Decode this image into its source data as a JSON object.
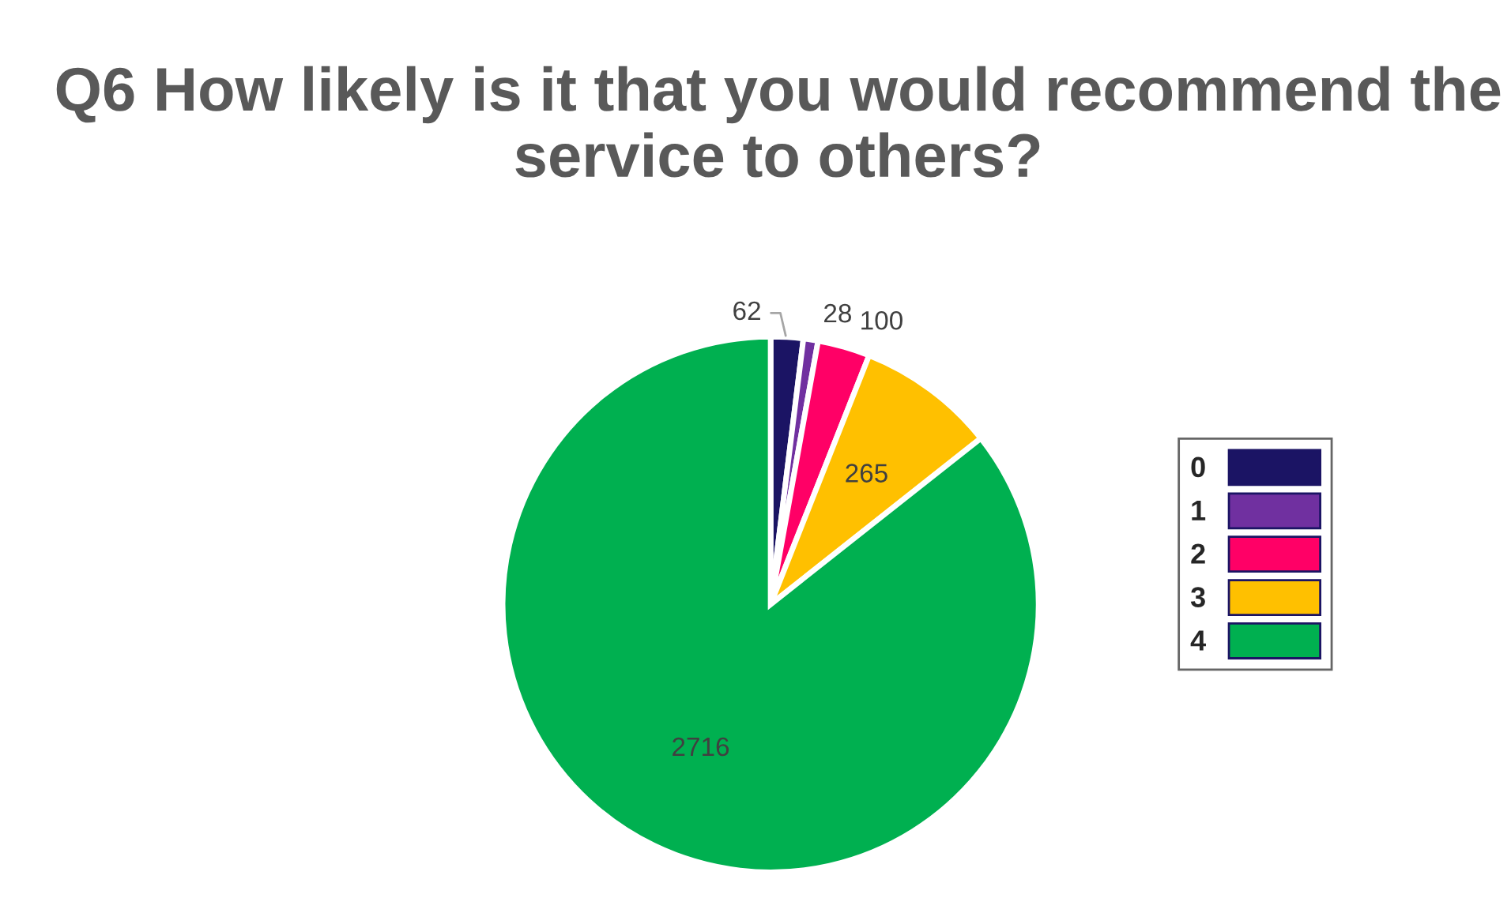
{
  "chart_data": {
    "type": "pie",
    "title": "Q6 How likely is it that you would recommend the service to others?",
    "categories": [
      "0",
      "1",
      "2",
      "3",
      "4"
    ],
    "values": [
      62,
      28,
      100,
      265,
      2716
    ],
    "colors": [
      "#1b1464",
      "#7030a0",
      "#ff0066",
      "#ffc000",
      "#00b050"
    ],
    "data_labels": true,
    "legend": "right"
  }
}
